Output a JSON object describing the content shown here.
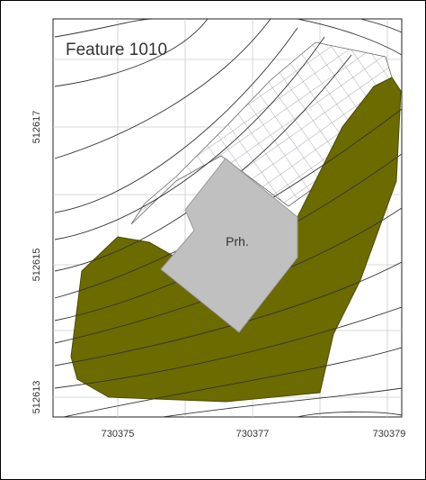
{
  "map": {
    "title": "Feature 1010",
    "label": "Prh.",
    "x_labels": [
      730375,
      730377,
      730379
    ],
    "y_labels": [
      512613,
      512615,
      512617
    ]
  }
}
